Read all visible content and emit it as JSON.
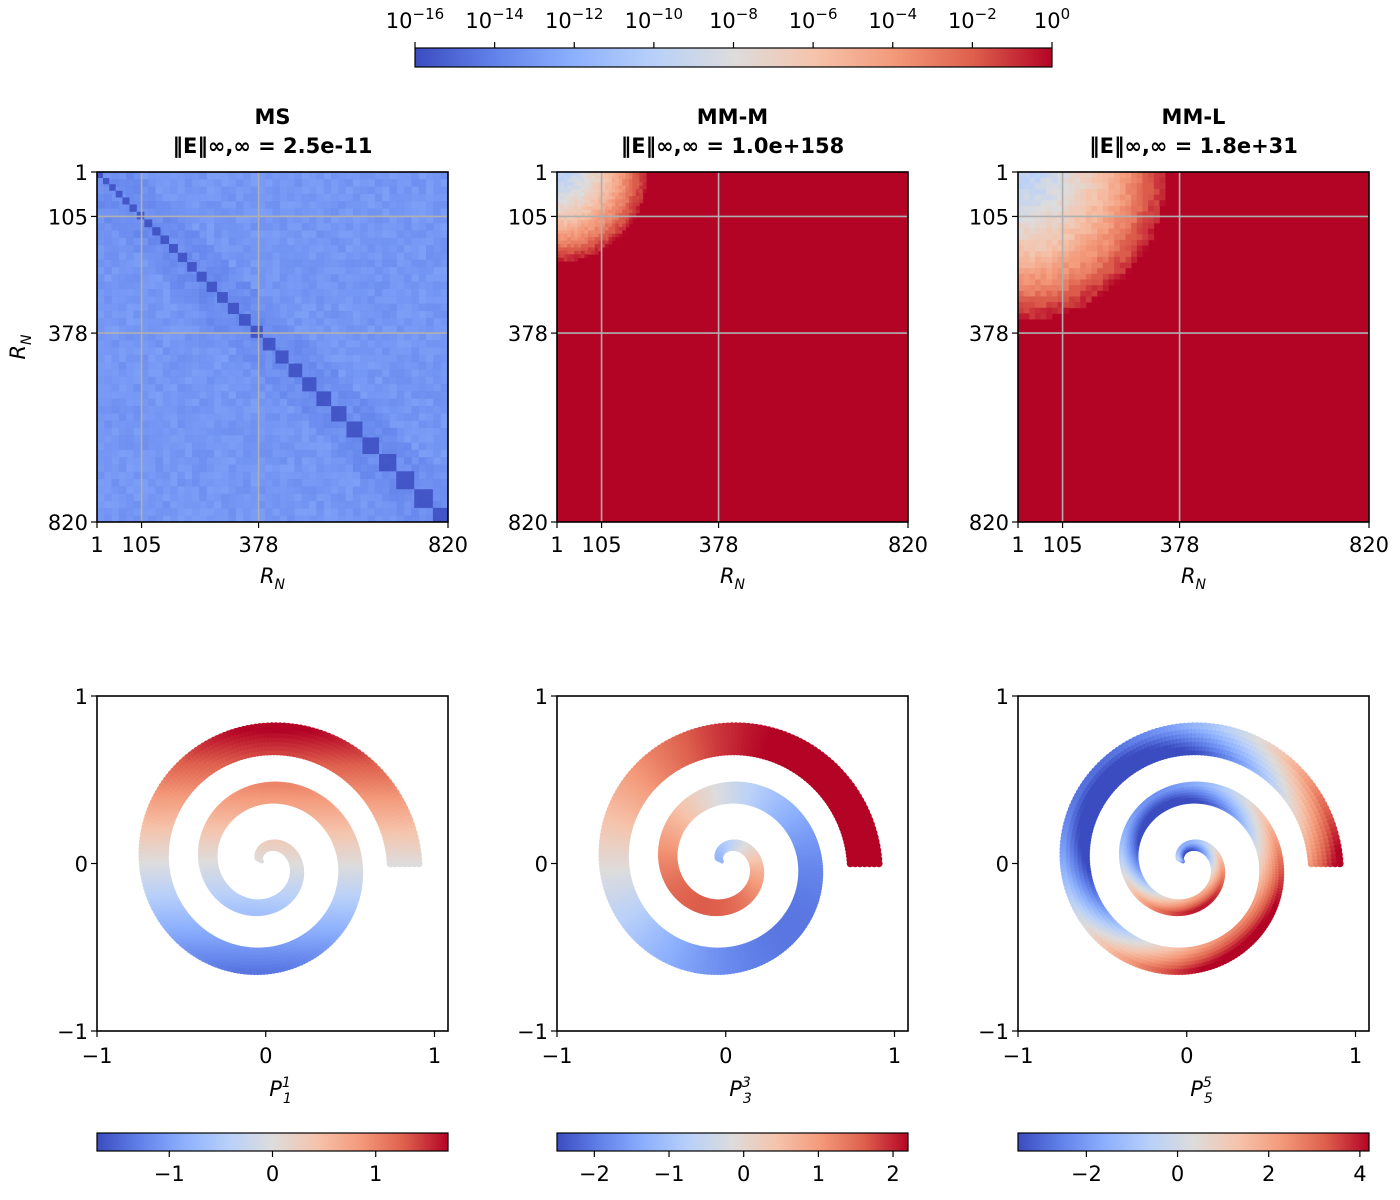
{
  "colormap": {
    "name": "coolwarm",
    "stops": [
      "#3b4cc0",
      "#6282ea",
      "#8db0fe",
      "#b8d0f9",
      "#dddcdc",
      "#f5c4ac",
      "#f49a7b",
      "#de604d",
      "#b40426"
    ]
  },
  "chart_data": [
    {
      "type": "colorbar",
      "name": "error-colorbar",
      "scale": "log",
      "range": [
        1e-16,
        1
      ],
      "tick_labels": [
        {
          "base": "10",
          "exp": "−16"
        },
        {
          "base": "10",
          "exp": "−14"
        },
        {
          "base": "10",
          "exp": "−12"
        },
        {
          "base": "10",
          "exp": "−10"
        },
        {
          "base": "10",
          "exp": "−8"
        },
        {
          "base": "10",
          "exp": "−6"
        },
        {
          "base": "10",
          "exp": "−4"
        },
        {
          "base": "10",
          "exp": "−2"
        },
        {
          "base": "10",
          "exp": "0"
        }
      ]
    },
    {
      "type": "heatmap",
      "name": "ms-matrix",
      "title": "MS",
      "norm_label": "‖E‖∞,∞ = 2.5e-11",
      "xlabel": "R",
      "xlabel_sub": "N",
      "ylabel": "R",
      "ylabel_sub": "N",
      "ticks": [
        "1",
        "105",
        "378",
        "820"
      ],
      "range": [
        1,
        820
      ],
      "gridlines_at": [
        105,
        378
      ],
      "pattern": "uniform-low-error",
      "log_error_level": -13
    },
    {
      "type": "heatmap",
      "name": "mm-m-matrix",
      "title": "MM-M",
      "norm_label": "‖E‖∞,∞ = 1.0e+158",
      "xlabel": "R",
      "xlabel_sub": "N",
      "ticks": [
        "1",
        "105",
        "378",
        "820"
      ],
      "range": [
        1,
        820
      ],
      "gridlines_at": [
        105,
        378
      ],
      "pattern": "saturated-except-corner",
      "corner_extent": 200
    },
    {
      "type": "heatmap",
      "name": "mm-l-matrix",
      "title": "MM-L",
      "norm_label": "‖E‖∞,∞ = 1.8e+31",
      "xlabel": "R",
      "xlabel_sub": "N",
      "ticks": [
        "1",
        "105",
        "378",
        "820"
      ],
      "range": [
        1,
        820
      ],
      "gridlines_at": [
        105,
        378
      ],
      "pattern": "saturated-except-corner",
      "corner_extent": 330
    },
    {
      "type": "scatter",
      "name": "spiral-p1",
      "xlabel": "P",
      "xlabel_sub": "1",
      "xlabel_sup": "1",
      "xlim": [
        -1,
        1.08
      ],
      "ylim": [
        -1,
        1
      ],
      "xticks": [
        "−1",
        "0",
        "1"
      ],
      "yticks": [
        "−1",
        "0",
        "1"
      ],
      "function_degree": 1,
      "colorbar": {
        "range": [
          -1.7,
          1.7
        ],
        "ticks": [
          -1,
          0,
          1
        ],
        "tick_labels": [
          "−1",
          "0",
          "1"
        ]
      }
    },
    {
      "type": "scatter",
      "name": "spiral-p3",
      "xlabel": "P",
      "xlabel_sub": "3",
      "xlabel_sup": "3",
      "xlim": [
        -1,
        1.08
      ],
      "ylim": [
        -1,
        1
      ],
      "xticks": [
        "−1",
        "0",
        "1"
      ],
      "yticks": [],
      "function_degree": 3,
      "colorbar": {
        "range": [
          -2.5,
          2.2
        ],
        "ticks": [
          -2,
          -1,
          0,
          1,
          2
        ],
        "tick_labels": [
          "−2",
          "−1",
          "0",
          "1",
          "2"
        ]
      }
    },
    {
      "type": "scatter",
      "name": "spiral-p5",
      "xlabel": "P",
      "xlabel_sub": "5",
      "xlabel_sup": "5",
      "xlim": [
        -1,
        1.08
      ],
      "ylim": [
        -1,
        1
      ],
      "xticks": [
        "−1",
        "0",
        "1"
      ],
      "yticks": [
        "−1",
        "0",
        "1"
      ],
      "function_degree": 5,
      "colorbar": {
        "range": [
          -3.5,
          4.2
        ],
        "ticks": [
          -2,
          0,
          2,
          4
        ],
        "tick_labels": [
          "−2",
          "0",
          "2",
          "4"
        ]
      }
    }
  ]
}
